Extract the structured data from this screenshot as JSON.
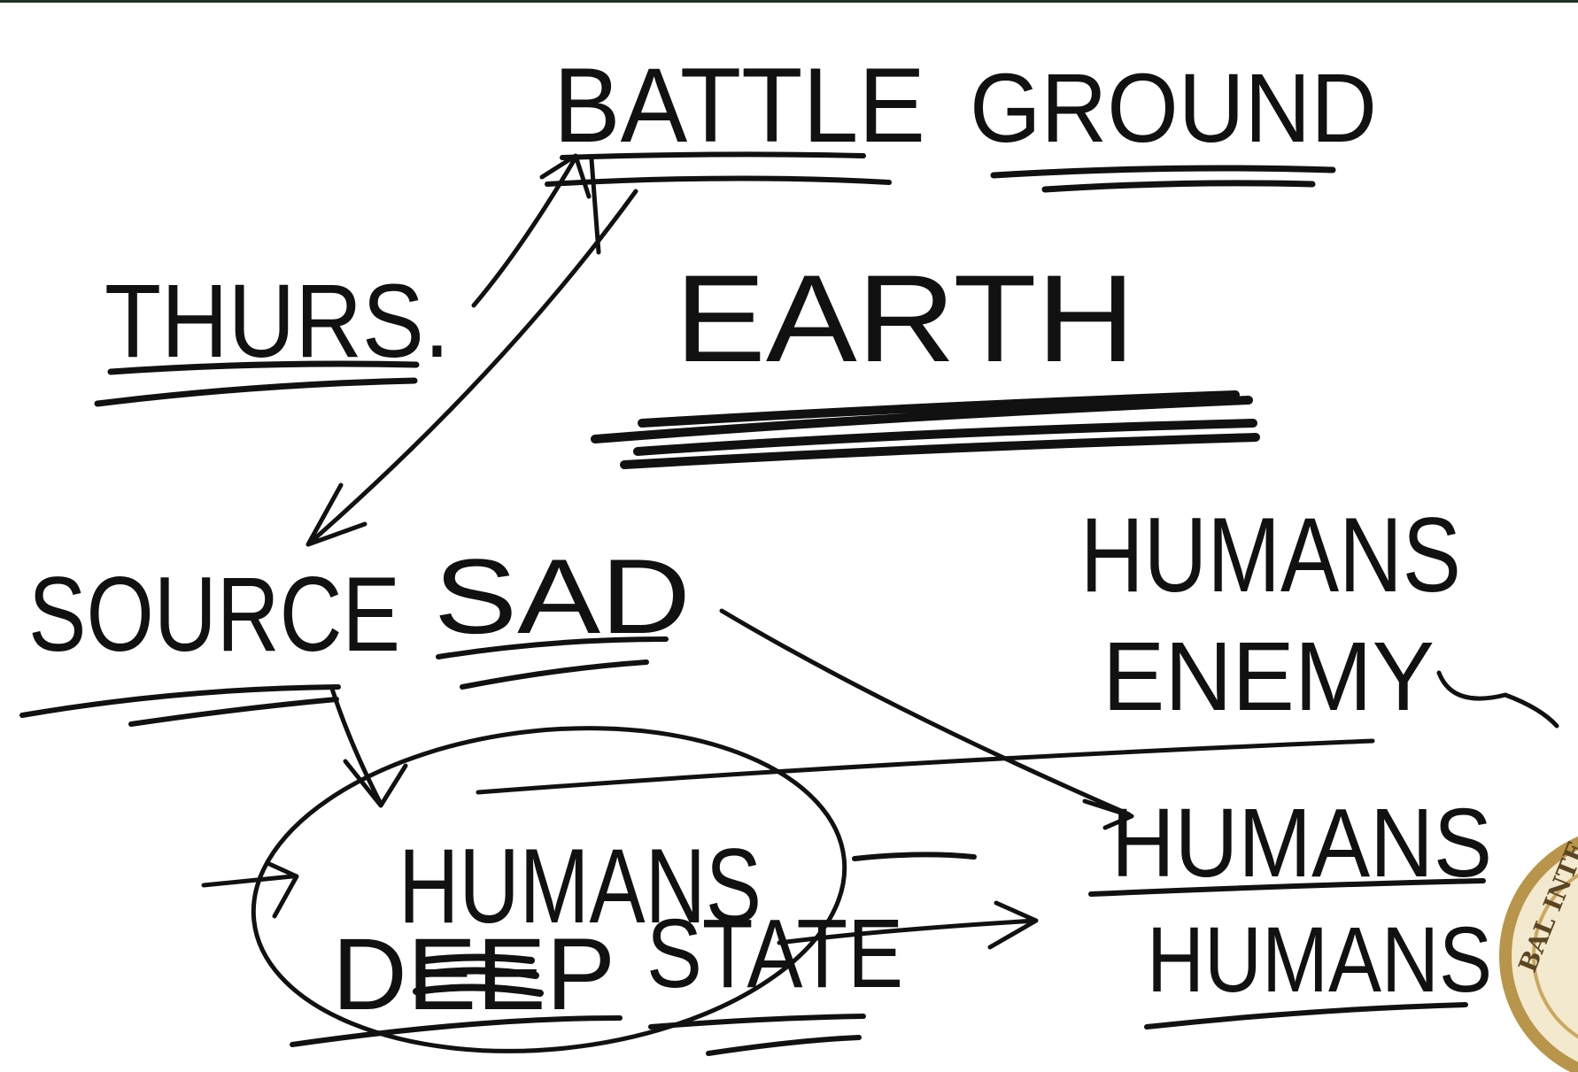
{
  "whiteboard": {
    "labels": {
      "battleground_1": "BAttLE",
      "battleground_2": "GROUND",
      "thurs": "THURS.",
      "earth": "EARTH",
      "source": "SOURCE",
      "sad": "SAD",
      "humans_top": "HUMANS",
      "enemy": "ENEMY",
      "humans_circle": "HUMANS",
      "deep": "DEEP",
      "state": "STATE",
      "humans_right": "HUMANS",
      "humans_bottom": "HUMANS"
    },
    "ink_color": "#111111",
    "background_color": "#ffffff"
  },
  "seal": {
    "text": "BAL INTE",
    "ring_color": "#b8954a"
  }
}
